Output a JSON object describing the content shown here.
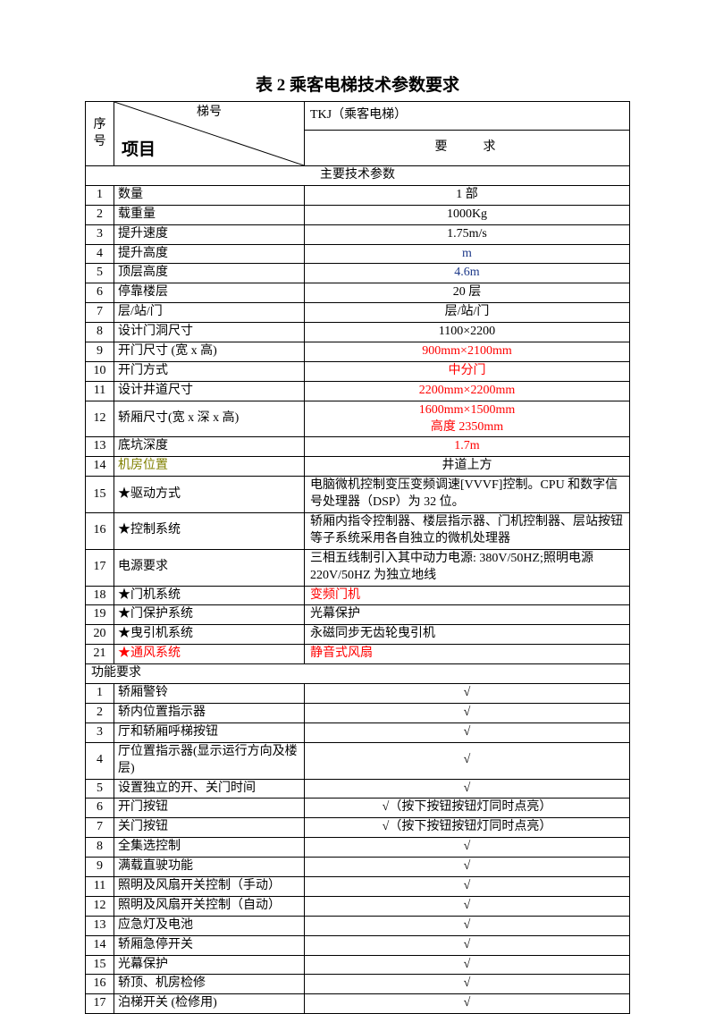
{
  "title": "表 2 乘客电梯技术参数要求",
  "header": {
    "seq": "序号",
    "tihao": "梯号",
    "xiangmu": "项目",
    "tkj": "TKJ（乘客电梯）",
    "yaoqiu": "要求"
  },
  "sec1": "主要技术参数",
  "rows1": [
    {
      "n": "1",
      "l": "数量",
      "v": "1 部",
      "c": ""
    },
    {
      "n": "2",
      "l": "载重量",
      "v": "1000Kg",
      "c": ""
    },
    {
      "n": "3",
      "l": "提升速度",
      "v": "1.75m/s",
      "c": ""
    },
    {
      "n": "4",
      "l": "提升高度",
      "v": "m",
      "c": "blue"
    },
    {
      "n": "5",
      "l": "顶层高度",
      "v": "4.6m",
      "c": "blue"
    },
    {
      "n": "6",
      "l": "停靠楼层",
      "v": "20 层",
      "c": ""
    },
    {
      "n": "7",
      "l": "层/站/门",
      "v": "层/站/门",
      "c": ""
    },
    {
      "n": "8",
      "l": "设计门洞尺寸",
      "v": "1100×2200",
      "c": ""
    },
    {
      "n": "9",
      "l": "开门尺寸 (宽 x 高)",
      "v": "900mm×2100mm",
      "c": "red"
    },
    {
      "n": "10",
      "l": "开门方式",
      "v": "中分门",
      "c": "red"
    },
    {
      "n": "11",
      "l": "设计井道尺寸",
      "v": "2200mm×2200mm",
      "c": "red"
    },
    {
      "n": "12",
      "l": "轿厢尺寸(宽 x 深 x 高)",
      "v": "1600mm×1500mm<br>高度 2350mm",
      "c": "red"
    },
    {
      "n": "13",
      "l": "底坑深度",
      "v": "1.7m",
      "c": "red"
    },
    {
      "n": "14",
      "l": "机房位置",
      "v": "井道上方",
      "c": "",
      "lc": "olive"
    },
    {
      "n": "15",
      "l": "★驱动方式",
      "v": "电脑微机控制变压变频调速[VVVF]控制。CPU 和数字信号处理器（DSP）为 32 位。",
      "c": "",
      "align": "left"
    },
    {
      "n": "16",
      "l": "★控制系统",
      "v": "轿厢内指令控制器、楼层指示器、门机控制器、层站按钮等子系统采用各自独立的微机处理器",
      "c": "",
      "align": "left"
    },
    {
      "n": "17",
      "l": "电源要求",
      "v": "三相五线制引入其中动力电源: 380V/50HZ;照明电源220V/50HZ 为独立地线",
      "c": "",
      "align": "left"
    },
    {
      "n": "18",
      "l": "★门机系统",
      "v": "变频门机",
      "c": "red",
      "align": "left"
    },
    {
      "n": "19",
      "l": "★门保护系统",
      "v": "光幕保护",
      "c": "",
      "align": "left"
    },
    {
      "n": "20",
      "l": "★曳引机系统",
      "v": "永磁同步无齿轮曳引机",
      "c": "",
      "align": "left"
    },
    {
      "n": "21",
      "l": "★通风系统",
      "v": "静音式风扇",
      "c": "red",
      "align": "left",
      "lc": "red"
    }
  ],
  "sec2": "功能要求",
  "rows2": [
    {
      "n": "1",
      "l": "轿厢警铃",
      "v": "√"
    },
    {
      "n": "2",
      "l": "轿内位置指示器",
      "v": "√"
    },
    {
      "n": "3",
      "l": "厅和轿厢呼梯按钮",
      "v": "√"
    },
    {
      "n": "4",
      "l": "厅位置指示器(显示运行方向及楼层)",
      "v": "√"
    },
    {
      "n": "5",
      "l": "设置独立的开、关门时间",
      "v": "√"
    },
    {
      "n": "6",
      "l": "开门按钮",
      "v": "√（按下按钮按钮灯同时点亮）"
    },
    {
      "n": "7",
      "l": "关门按钮",
      "v": "√（按下按钮按钮灯同时点亮）"
    },
    {
      "n": "8",
      "l": "全集选控制",
      "v": "√"
    },
    {
      "n": "9",
      "l": "满载直驶功能",
      "v": "√"
    },
    {
      "n": "11",
      "l": "照明及风扇开关控制（手动）",
      "v": "√"
    },
    {
      "n": "12",
      "l": "照明及风扇开关控制（自动）",
      "v": "√"
    },
    {
      "n": "13",
      "l": "应急灯及电池",
      "v": "√"
    },
    {
      "n": "14",
      "l": "轿厢急停开关",
      "v": "√"
    },
    {
      "n": "15",
      "l": "光幕保护",
      "v": "√"
    },
    {
      "n": "16",
      "l": "轿顶、机房检修",
      "v": "√"
    },
    {
      "n": "17",
      "l": "泊梯开关 (检修用)",
      "v": "√"
    }
  ]
}
